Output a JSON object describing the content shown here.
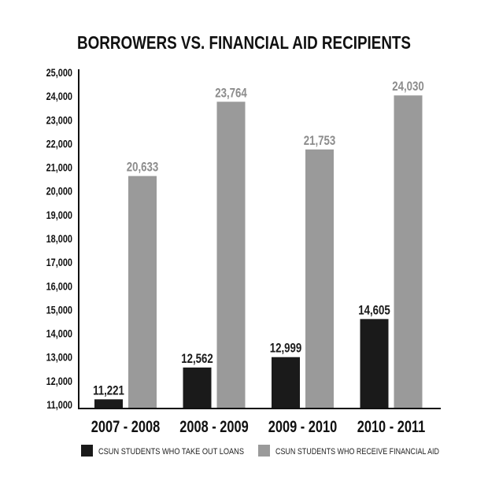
{
  "chart_data": {
    "type": "bar",
    "title": "BORROWERS VS. FINANCIAL AID RECIPIENTS",
    "xlabel": "",
    "ylabel": "",
    "ylim": [
      11000,
      25000
    ],
    "yticks": [
      "11,000",
      "12,000",
      "13,000",
      "14,000",
      "15,000",
      "16,000",
      "17,000",
      "18,000",
      "19,000",
      "20,000",
      "21,000",
      "22,000",
      "23,000",
      "24,000",
      "25,000"
    ],
    "categories": [
      "2007 - 2008",
      "2008 - 2009",
      "2009 - 2010",
      "2010 - 2011"
    ],
    "series": [
      {
        "name": "CSUN STUDENTS WHO TAKE OUT LOANS",
        "color": "#1a1a1a",
        "label_color": "#1a1a1a",
        "values": [
          11221,
          12562,
          12999,
          14605
        ],
        "labels": [
          "11,221",
          "12,562",
          "12,999",
          "14,605"
        ]
      },
      {
        "name": "CSUN STUDENTS WHO RECEIVE FINANCIAL AID",
        "color": "#9a9a9a",
        "label_color": "#8c8c8c",
        "values": [
          20633,
          23764,
          21753,
          24030
        ],
        "labels": [
          "20,633",
          "23,764",
          "21,753",
          "24,030"
        ]
      }
    ],
    "grid": false,
    "legend_position": "bottom"
  }
}
